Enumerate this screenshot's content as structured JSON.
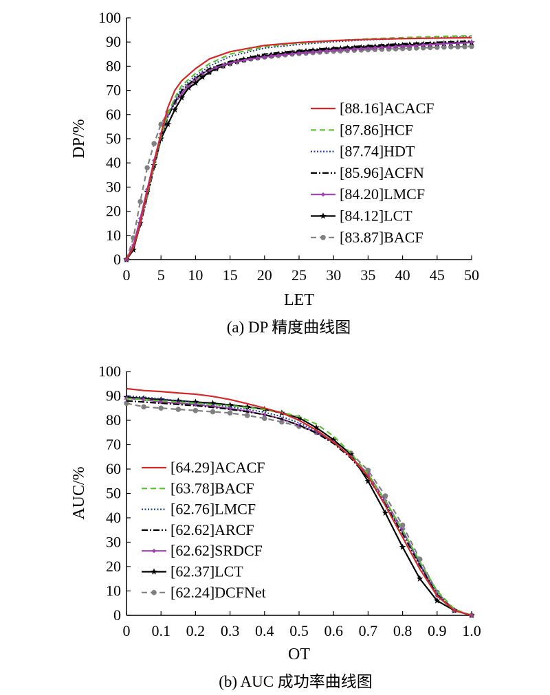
{
  "charts": [
    {
      "type": "line",
      "caption": "(a) DP 精度曲线图",
      "xlabel": "LET",
      "ylabel": "DP/%",
      "xlim": [
        0,
        50
      ],
      "ylim": [
        0,
        100
      ],
      "xticks": [
        "0",
        "5",
        "10",
        "15",
        "20",
        "25",
        "30",
        "35",
        "40",
        "45",
        "50"
      ],
      "yticks": [
        "0",
        "10",
        "20",
        "30",
        "40",
        "50",
        "60",
        "70",
        "80",
        "90",
        "100"
      ],
      "legend_position": "center-right",
      "series": [
        {
          "name": "[88.16]ACACF",
          "color": "#d62728",
          "style": "solid",
          "marker": "none",
          "x": [
            0,
            1,
            2,
            3,
            4,
            5,
            6,
            7,
            8,
            10,
            12,
            15,
            20,
            25,
            30,
            35,
            40,
            45,
            50
          ],
          "y": [
            0,
            5,
            15,
            28,
            40,
            52,
            63,
            70,
            74,
            79,
            83,
            86,
            88.6,
            89.8,
            90.6,
            91.1,
            91.4,
            91.6,
            91.8
          ]
        },
        {
          "name": "[87.86]HCF",
          "color": "#59c12f",
          "style": "dashed",
          "marker": "none",
          "x": [
            0,
            1,
            2,
            3,
            4,
            5,
            6,
            7,
            8,
            10,
            12,
            15,
            20,
            25,
            30,
            35,
            40,
            45,
            50
          ],
          "y": [
            0,
            5,
            15,
            27,
            39,
            51,
            60,
            67,
            72,
            77,
            81,
            85,
            88,
            89.5,
            90.5,
            91.3,
            91.8,
            92.3,
            92.6
          ]
        },
        {
          "name": "[87.74]HDT",
          "color": "#1f3fa0",
          "style": "dotted",
          "marker": "none",
          "x": [
            0,
            1,
            2,
            3,
            4,
            5,
            6,
            7,
            8,
            10,
            12,
            15,
            20,
            25,
            30,
            35,
            40,
            45,
            50
          ],
          "y": [
            0,
            5,
            14,
            26,
            38,
            50,
            59,
            66,
            71,
            76,
            80,
            84,
            87.5,
            89,
            90.1,
            90.9,
            91.4,
            91.8,
            92.2
          ]
        },
        {
          "name": "[85.96]ACFN",
          "color": "#000000",
          "style": "dashdot",
          "marker": "none",
          "x": [
            0,
            1,
            2,
            3,
            4,
            5,
            6,
            7,
            8,
            10,
            12,
            15,
            20,
            25,
            30,
            35,
            40,
            45,
            50
          ],
          "y": [
            0,
            5,
            14,
            26,
            38,
            50,
            59,
            65,
            70,
            75,
            79,
            82,
            85,
            86.5,
            87.6,
            88.5,
            89.3,
            89.9,
            90.4
          ]
        },
        {
          "name": "[84.20]LMCF",
          "color": "#a040b0",
          "style": "solid",
          "marker": "diamond",
          "x": [
            0,
            1,
            2,
            3,
            4,
            5,
            6,
            7,
            8,
            9,
            10,
            11,
            12,
            13,
            14,
            15,
            16,
            17,
            18,
            19,
            20,
            21,
            22,
            23,
            24,
            25,
            26,
            27,
            28,
            29,
            30,
            31,
            32,
            33,
            34,
            35,
            36,
            37,
            38,
            39,
            40,
            41,
            42,
            43,
            44,
            45,
            46,
            47,
            48,
            49,
            50
          ],
          "y": [
            0,
            6,
            17,
            29,
            41,
            52,
            60,
            65,
            69,
            72,
            75,
            77,
            78.5,
            79.5,
            80.5,
            81.3,
            82,
            82.5,
            83,
            83.4,
            83.8,
            84.2,
            84.5,
            84.8,
            85.1,
            85.4,
            85.6,
            85.9,
            86.1,
            86.3,
            86.5,
            86.7,
            86.9,
            87.1,
            87.2,
            87.4,
            87.6,
            87.8,
            87.9,
            88.1,
            88.3,
            88.4,
            88.6,
            88.8,
            88.9,
            89.1,
            89.3,
            89.5,
            89.6,
            89.8,
            90
          ]
        },
        {
          "name": "[84.12]LCT",
          "color": "#000000",
          "style": "solid",
          "marker": "star",
          "x": [
            0,
            1,
            2,
            3,
            4,
            5,
            6,
            7,
            8,
            9,
            10,
            11,
            12,
            13,
            14,
            15,
            16,
            17,
            18,
            19,
            20,
            21,
            22,
            23,
            24,
            25,
            26,
            27,
            28,
            29,
            30,
            31,
            32,
            33,
            34,
            35,
            36,
            37,
            38,
            39,
            40,
            41,
            42,
            43,
            44,
            45,
            46,
            47,
            48,
            49,
            50
          ],
          "y": [
            0,
            4,
            15,
            28,
            39,
            50,
            56,
            62,
            67,
            71,
            73,
            75.5,
            77.5,
            79,
            80.2,
            81.2,
            82,
            82.7,
            83.3,
            83.8,
            84.2,
            84.6,
            85,
            85.3,
            85.6,
            85.9,
            86.2,
            86.5,
            86.7,
            86.9,
            87.1,
            87.3,
            87.5,
            87.6,
            87.8,
            88,
            88.1,
            88.3,
            88.4,
            88.6,
            88.7,
            88.8,
            89,
            89.1,
            89.2,
            89.3,
            89.4,
            89.5,
            89.6,
            89.7,
            89.8
          ]
        },
        {
          "name": "[83.87]BACF",
          "color": "#808080",
          "style": "dashed",
          "marker": "circle",
          "x": [
            0,
            1,
            2,
            3,
            4,
            5,
            6,
            7,
            8,
            9,
            10,
            11,
            12,
            13,
            14,
            15,
            16,
            17,
            18,
            19,
            20,
            21,
            22,
            23,
            24,
            25,
            26,
            27,
            28,
            29,
            30,
            31,
            32,
            33,
            34,
            35,
            36,
            37,
            38,
            39,
            40,
            41,
            42,
            43,
            44,
            45,
            46,
            47,
            48,
            49,
            50
          ],
          "y": [
            0,
            9,
            24,
            38,
            48,
            56,
            61,
            65,
            68,
            72,
            74,
            76,
            77.5,
            79,
            80,
            81,
            81.8,
            82.4,
            83,
            83.4,
            83.8,
            84.1,
            84.4,
            84.7,
            85,
            85.2,
            85.4,
            85.6,
            85.8,
            86,
            86.2,
            86.3,
            86.5,
            86.6,
            86.7,
            86.8,
            86.9,
            87,
            87.1,
            87.2,
            87.3,
            87.4,
            87.5,
            87.6,
            87.7,
            87.8,
            87.9,
            88,
            88,
            88.1,
            88.2
          ]
        }
      ]
    },
    {
      "type": "line",
      "caption": "(b) AUC 成功率曲线图",
      "xlabel": "OT",
      "ylabel": "AUC/%",
      "xlim": [
        0,
        1
      ],
      "ylim": [
        0,
        100
      ],
      "xticks": [
        "0",
        "0.1",
        "0.2",
        "0.3",
        "0.4",
        "0.5",
        "0.6",
        "0.7",
        "0.8",
        "0.9",
        "1.0"
      ],
      "yticks": [
        "0",
        "10",
        "20",
        "30",
        "40",
        "50",
        "60",
        "70",
        "80",
        "90",
        "100"
      ],
      "legend_position": "center-left",
      "series": [
        {
          "name": "[64.29]ACACF",
          "color": "#d62728",
          "style": "solid",
          "marker": "none",
          "x": [
            0,
            0.05,
            0.1,
            0.15,
            0.2,
            0.25,
            0.3,
            0.35,
            0.4,
            0.45,
            0.5,
            0.55,
            0.6,
            0.65,
            0.7,
            0.75,
            0.8,
            0.85,
            0.9,
            0.95,
            1.0
          ],
          "y": [
            93,
            92.2,
            91.8,
            91.2,
            90.7,
            89.8,
            88.5,
            86.8,
            85,
            83,
            80,
            76,
            71,
            65,
            57,
            45,
            32,
            19,
            8,
            2,
            0
          ]
        },
        {
          "name": "[63.78]BACF",
          "color": "#59c12f",
          "style": "dashed",
          "marker": "none",
          "x": [
            0,
            0.05,
            0.1,
            0.15,
            0.2,
            0.25,
            0.3,
            0.35,
            0.4,
            0.45,
            0.5,
            0.55,
            0.6,
            0.65,
            0.7,
            0.75,
            0.8,
            0.85,
            0.9,
            0.95,
            1.0
          ],
          "y": [
            89,
            88.5,
            88,
            87.5,
            87,
            86.5,
            86,
            85.3,
            84.4,
            83.2,
            81.5,
            78.5,
            73.5,
            66.5,
            58,
            47,
            35,
            22,
            10,
            2.5,
            0
          ]
        },
        {
          "name": "[62.76]LMCF",
          "color": "#1f3fa0",
          "style": "dotted",
          "marker": "none",
          "x": [
            0,
            0.05,
            0.1,
            0.15,
            0.2,
            0.25,
            0.3,
            0.35,
            0.4,
            0.45,
            0.5,
            0.55,
            0.6,
            0.65,
            0.7,
            0.75,
            0.8,
            0.85,
            0.9,
            0.95,
            1.0
          ],
          "y": [
            90,
            89.5,
            88.8,
            88,
            87.3,
            86.5,
            85.5,
            84.5,
            83.3,
            81.5,
            79,
            75.5,
            71,
            65,
            57,
            46,
            34,
            21,
            9,
            2,
            0
          ]
        },
        {
          "name": "[62.62]ARCF",
          "color": "#000000",
          "style": "dashdot",
          "marker": "none",
          "x": [
            0,
            0.05,
            0.1,
            0.15,
            0.2,
            0.25,
            0.3,
            0.35,
            0.4,
            0.45,
            0.5,
            0.55,
            0.6,
            0.65,
            0.7,
            0.75,
            0.8,
            0.85,
            0.9,
            0.95,
            1.0
          ],
          "y": [
            88,
            87.5,
            87,
            86.5,
            86,
            85.3,
            84.5,
            83.5,
            82.3,
            80.5,
            78,
            74.8,
            70.5,
            64.5,
            56.5,
            45.5,
            33.5,
            20.5,
            8.5,
            2,
            0
          ]
        },
        {
          "name": "[62.62]SRDCF",
          "color": "#a040b0",
          "style": "solid",
          "marker": "diamond",
          "x": [
            0,
            0.05,
            0.1,
            0.15,
            0.2,
            0.25,
            0.3,
            0.35,
            0.4,
            0.45,
            0.5,
            0.55,
            0.6,
            0.65,
            0.7,
            0.75,
            0.8,
            0.85,
            0.9,
            0.95,
            1.0
          ],
          "y": [
            89,
            88.5,
            87.5,
            87,
            86.5,
            85.7,
            84.8,
            83.7,
            82.3,
            80.5,
            78,
            75,
            71,
            65,
            58,
            47,
            35,
            21,
            8,
            2,
            0
          ]
        },
        {
          "name": "[62.37]LCT",
          "color": "#000000",
          "style": "solid",
          "marker": "star",
          "x": [
            0,
            0.05,
            0.1,
            0.15,
            0.2,
            0.25,
            0.3,
            0.35,
            0.4,
            0.45,
            0.5,
            0.55,
            0.6,
            0.65,
            0.7,
            0.75,
            0.8,
            0.85,
            0.9,
            0.95,
            1.0
          ],
          "y": [
            89.5,
            89,
            88.5,
            88,
            87.5,
            87,
            86.3,
            85.5,
            84.5,
            83,
            81,
            77,
            72,
            66,
            55,
            42,
            28,
            15,
            6,
            2,
            0
          ]
        },
        {
          "name": "[62.24]DCFNet",
          "color": "#808080",
          "style": "dashed",
          "marker": "circle",
          "x": [
            0,
            0.05,
            0.1,
            0.15,
            0.2,
            0.25,
            0.3,
            0.35,
            0.4,
            0.45,
            0.5,
            0.55,
            0.6,
            0.65,
            0.7,
            0.75,
            0.8,
            0.85,
            0.9,
            0.95,
            1.0
          ],
          "y": [
            87,
            85.5,
            85,
            84.5,
            84,
            83.5,
            83,
            82,
            80.8,
            79.3,
            77.5,
            75,
            71.5,
            66.5,
            59.5,
            49,
            37,
            23,
            9.5,
            2,
            0
          ]
        }
      ]
    }
  ],
  "chart_data": [
    {
      "type": "line",
      "title": "(a) DP 精度曲线图",
      "xlabel": "LET",
      "ylabel": "DP/%",
      "xlim": [
        0,
        50
      ],
      "ylim": [
        0,
        100
      ],
      "grid": false
    },
    {
      "type": "line",
      "title": "(b) AUC 成功率曲线图",
      "xlabel": "OT",
      "ylabel": "AUC/%",
      "xlim": [
        0,
        1
      ],
      "ylim": [
        0,
        100
      ],
      "grid": false
    }
  ]
}
